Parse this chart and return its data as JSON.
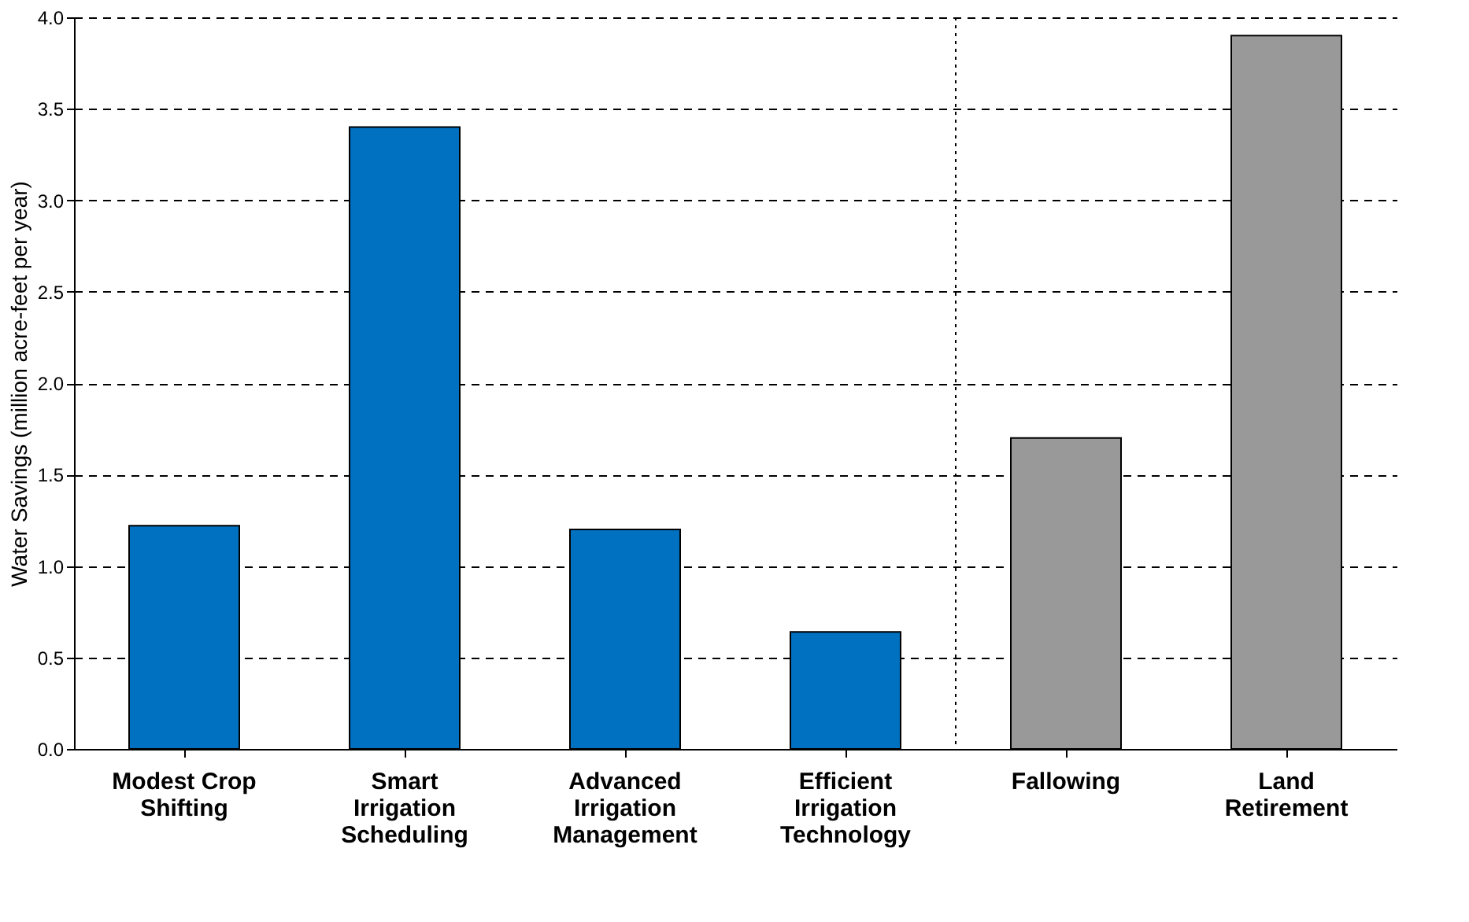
{
  "chart_data": {
    "type": "bar",
    "ylabel": "Water Savings (million acre-feet per year)",
    "categories": [
      "Modest Crop\nShifting",
      "Smart\nIrrigation\nScheduling",
      "Advanced\nIrrigation\nManagement",
      "Efficient\nIrrigation\nTechnology",
      "Fallowing",
      "Land\nRetirement"
    ],
    "values": [
      1.22,
      3.4,
      1.2,
      0.64,
      1.7,
      3.9
    ],
    "colors": [
      "#0070c0",
      "#0070c0",
      "#0070c0",
      "#0070c0",
      "#999999",
      "#999999"
    ],
    "ylim": [
      0,
      4.0
    ],
    "yticks": [
      {
        "value": 0,
        "label": "0.0"
      },
      {
        "value": 0.5,
        "label": "0.5"
      },
      {
        "value": 1,
        "label": "1.0"
      },
      {
        "value": 1.5,
        "label": "1.5"
      },
      {
        "value": 2,
        "label": "2.0"
      },
      {
        "value": 2.5,
        "label": "2.5"
      },
      {
        "value": 3,
        "label": "3.0"
      },
      {
        "value": 3.5,
        "label": "3.5"
      },
      {
        "value": 4,
        "label": "4.0"
      }
    ],
    "grid": "y"
  }
}
